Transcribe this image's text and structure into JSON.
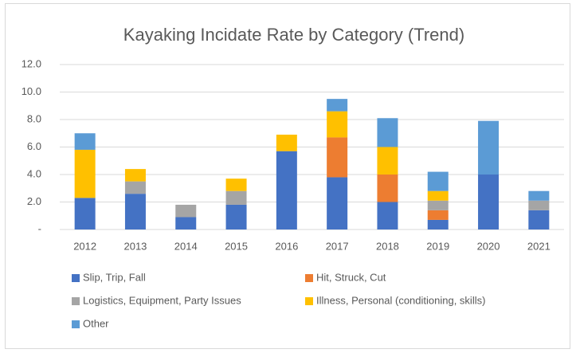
{
  "chart_data": {
    "type": "stacked_bar",
    "title": "Kayaking Incidate Rate by Category (Trend)",
    "categories": [
      "2012",
      "2013",
      "2014",
      "2015",
      "2016",
      "2017",
      "2018",
      "2019",
      "2020",
      "2021"
    ],
    "series": [
      {
        "name": "Slip, Trip, Fall",
        "color": "#4472c4",
        "values": [
          2.3,
          2.6,
          0.9,
          1.8,
          5.7,
          3.8,
          2.0,
          0.7,
          4.0,
          1.4
        ]
      },
      {
        "name": "Hit, Struck, Cut",
        "color": "#ed7d31",
        "values": [
          0,
          0,
          0,
          0,
          0,
          2.9,
          2.0,
          0.7,
          0,
          0
        ]
      },
      {
        "name": "Logistics, Equipment, Party Issues",
        "color": "#a5a5a5",
        "values": [
          0,
          0.9,
          0.9,
          1.0,
          0,
          0,
          0,
          0.7,
          0,
          0.7
        ]
      },
      {
        "name": "Illness, Personal (conditioning, skills)",
        "color": "#ffc000",
        "values": [
          3.5,
          0.9,
          0,
          0.9,
          1.2,
          1.9,
          2.0,
          0.7,
          0,
          0
        ]
      },
      {
        "name": "Other",
        "color": "#5b9bd5",
        "values": [
          1.2,
          0,
          0,
          0,
          0,
          0.9,
          2.1,
          1.4,
          3.9,
          0.7
        ]
      }
    ],
    "ylim": [
      0,
      12
    ],
    "yticks": [
      {
        "value": 0,
        "label": "-"
      },
      {
        "value": 2,
        "label": "2.0"
      },
      {
        "value": 4,
        "label": "4.0"
      },
      {
        "value": 6,
        "label": "6.0"
      },
      {
        "value": 8,
        "label": "8.0"
      },
      {
        "value": 10,
        "label": "10.0"
      },
      {
        "value": 12,
        "label": "12.0"
      }
    ],
    "grid": true,
    "legend": "bottom"
  }
}
